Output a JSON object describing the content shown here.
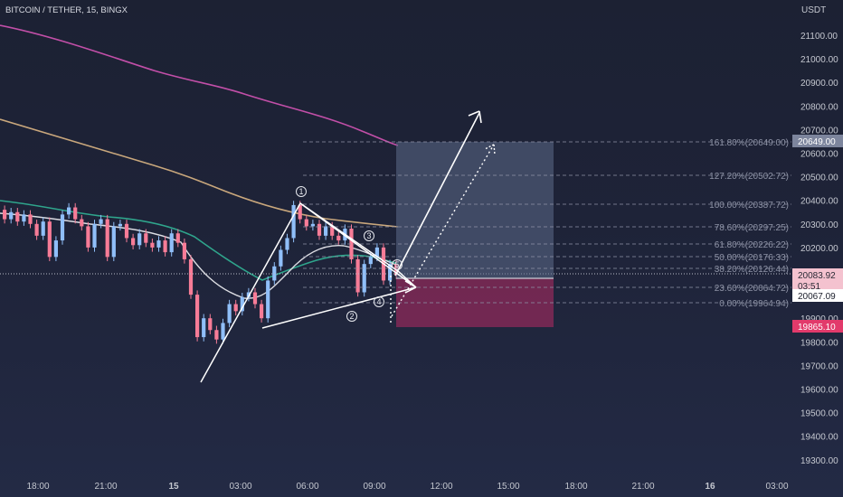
{
  "header": {
    "symbol_title": "BITCOIN / TETHER, 15, BINGX"
  },
  "price_axis": {
    "currency": "USDT",
    "ticks": [
      "21100.00",
      "21000.00",
      "20900.00",
      "20800.00",
      "20700.00",
      "20600.00",
      "20500.00",
      "20400.00",
      "20300.00",
      "20200.00",
      "20100.00",
      "19900.00",
      "19800.00",
      "19700.00",
      "19600.00",
      "19500.00",
      "19400.00",
      "19300.00"
    ]
  },
  "time_axis": {
    "ticks": [
      "18:00",
      "21:00",
      "15",
      "03:00",
      "06:00",
      "09:00",
      "12:00",
      "15:00",
      "18:00",
      "21:00",
      "16",
      "03:00"
    ]
  },
  "price_tags": {
    "target": "20649.00",
    "last_price": "20083.92",
    "countdown": "03:51",
    "entry": "20067.09",
    "stop": "19865.10"
  },
  "fibonacci": [
    {
      "label": "161.80%(20649.00)"
    },
    {
      "label": "127.20%(20502.72)"
    },
    {
      "label": "100.00%(20387.72)"
    },
    {
      "label": "78.60%(20297.25)"
    },
    {
      "label": "61.80%(20226.22)"
    },
    {
      "label": "50.00%(20176.33)"
    },
    {
      "label": "38.20%(20126.44)"
    },
    {
      "label": "23.60%(20064.72)"
    },
    {
      "label": "0.00%(19964.94)"
    }
  ],
  "waves": [
    "①",
    "②",
    "③",
    "④"
  ],
  "colors": {
    "up": "#90bff9",
    "down": "#f77c97",
    "ma_pink": "#c24fa8",
    "ma_tan": "#c9a77c",
    "ma_teal": "#2fa58c",
    "ma_white": "#dcdde3",
    "profit_zone": "#5d6b8a",
    "loss_zone": "#8d2a5a",
    "last_tag": "#f4c2cf",
    "stop_tag": "#e23a6b",
    "target_tag": "#7d859d"
  },
  "chart_data": {
    "type": "candlestick",
    "title": "BITCOIN / TETHER, 15, BINGX",
    "ylabel": "USDT",
    "ylim": [
      19250,
      21280
    ],
    "x_ticks": [
      "18:00",
      "21:00",
      "15",
      "03:00",
      "06:00",
      "09:00",
      "12:00",
      "15:00",
      "18:00",
      "21:00",
      "16",
      "03:00"
    ],
    "candles": [
      {
        "o": 20360,
        "c": 20320
      },
      {
        "o": 20320,
        "c": 20350
      },
      {
        "o": 20350,
        "c": 20310
      },
      {
        "o": 20310,
        "c": 20340
      },
      {
        "o": 20340,
        "c": 20300
      },
      {
        "o": 20300,
        "c": 20250
      },
      {
        "o": 20250,
        "c": 20310
      },
      {
        "o": 20310,
        "c": 20160
      },
      {
        "o": 20160,
        "c": 20230
      },
      {
        "o": 20230,
        "c": 20340
      },
      {
        "o": 20340,
        "c": 20370
      },
      {
        "o": 20370,
        "c": 20320
      },
      {
        "o": 20320,
        "c": 20290
      },
      {
        "o": 20290,
        "c": 20200
      },
      {
        "o": 20200,
        "c": 20300
      },
      {
        "o": 20300,
        "c": 20320
      },
      {
        "o": 20320,
        "c": 20160
      },
      {
        "o": 20160,
        "c": 20290
      },
      {
        "o": 20290,
        "c": 20300
      },
      {
        "o": 20300,
        "c": 20240
      },
      {
        "o": 20240,
        "c": 20210
      },
      {
        "o": 20210,
        "c": 20260
      },
      {
        "o": 20260,
        "c": 20220
      },
      {
        "o": 20220,
        "c": 20200
      },
      {
        "o": 20200,
        "c": 20230
      },
      {
        "o": 20230,
        "c": 20180
      },
      {
        "o": 20180,
        "c": 20260
      },
      {
        "o": 20260,
        "c": 20220
      },
      {
        "o": 20220,
        "c": 20150
      },
      {
        "o": 20150,
        "c": 20000
      },
      {
        "o": 20000,
        "c": 19820
      },
      {
        "o": 19820,
        "c": 19900
      },
      {
        "o": 19900,
        "c": 19850
      },
      {
        "o": 19850,
        "c": 19810
      },
      {
        "o": 19810,
        "c": 19880
      },
      {
        "o": 19880,
        "c": 19960
      },
      {
        "o": 19960,
        "c": 19930
      },
      {
        "o": 19930,
        "c": 19990
      },
      {
        "o": 19990,
        "c": 20010
      },
      {
        "o": 20010,
        "c": 19960
      },
      {
        "o": 19960,
        "c": 19900
      },
      {
        "o": 19900,
        "c": 20060
      },
      {
        "o": 20060,
        "c": 20120
      },
      {
        "o": 20120,
        "c": 20190
      },
      {
        "o": 20190,
        "c": 20240
      },
      {
        "o": 20240,
        "c": 20380
      },
      {
        "o": 20380,
        "c": 20320
      },
      {
        "o": 20320,
        "c": 20290
      },
      {
        "o": 20290,
        "c": 20300
      },
      {
        "o": 20300,
        "c": 20250
      },
      {
        "o": 20250,
        "c": 20290
      },
      {
        "o": 20290,
        "c": 20250
      },
      {
        "o": 20250,
        "c": 20230
      },
      {
        "o": 20230,
        "c": 20280
      },
      {
        "o": 20280,
        "c": 20150
      },
      {
        "o": 20150,
        "c": 20010
      },
      {
        "o": 20010,
        "c": 20130
      },
      {
        "o": 20130,
        "c": 20160
      },
      {
        "o": 20160,
        "c": 20200
      },
      {
        "o": 20200,
        "c": 20060
      },
      {
        "o": 20060,
        "c": 20130
      },
      {
        "o": 20130,
        "c": 20084
      }
    ]
  }
}
